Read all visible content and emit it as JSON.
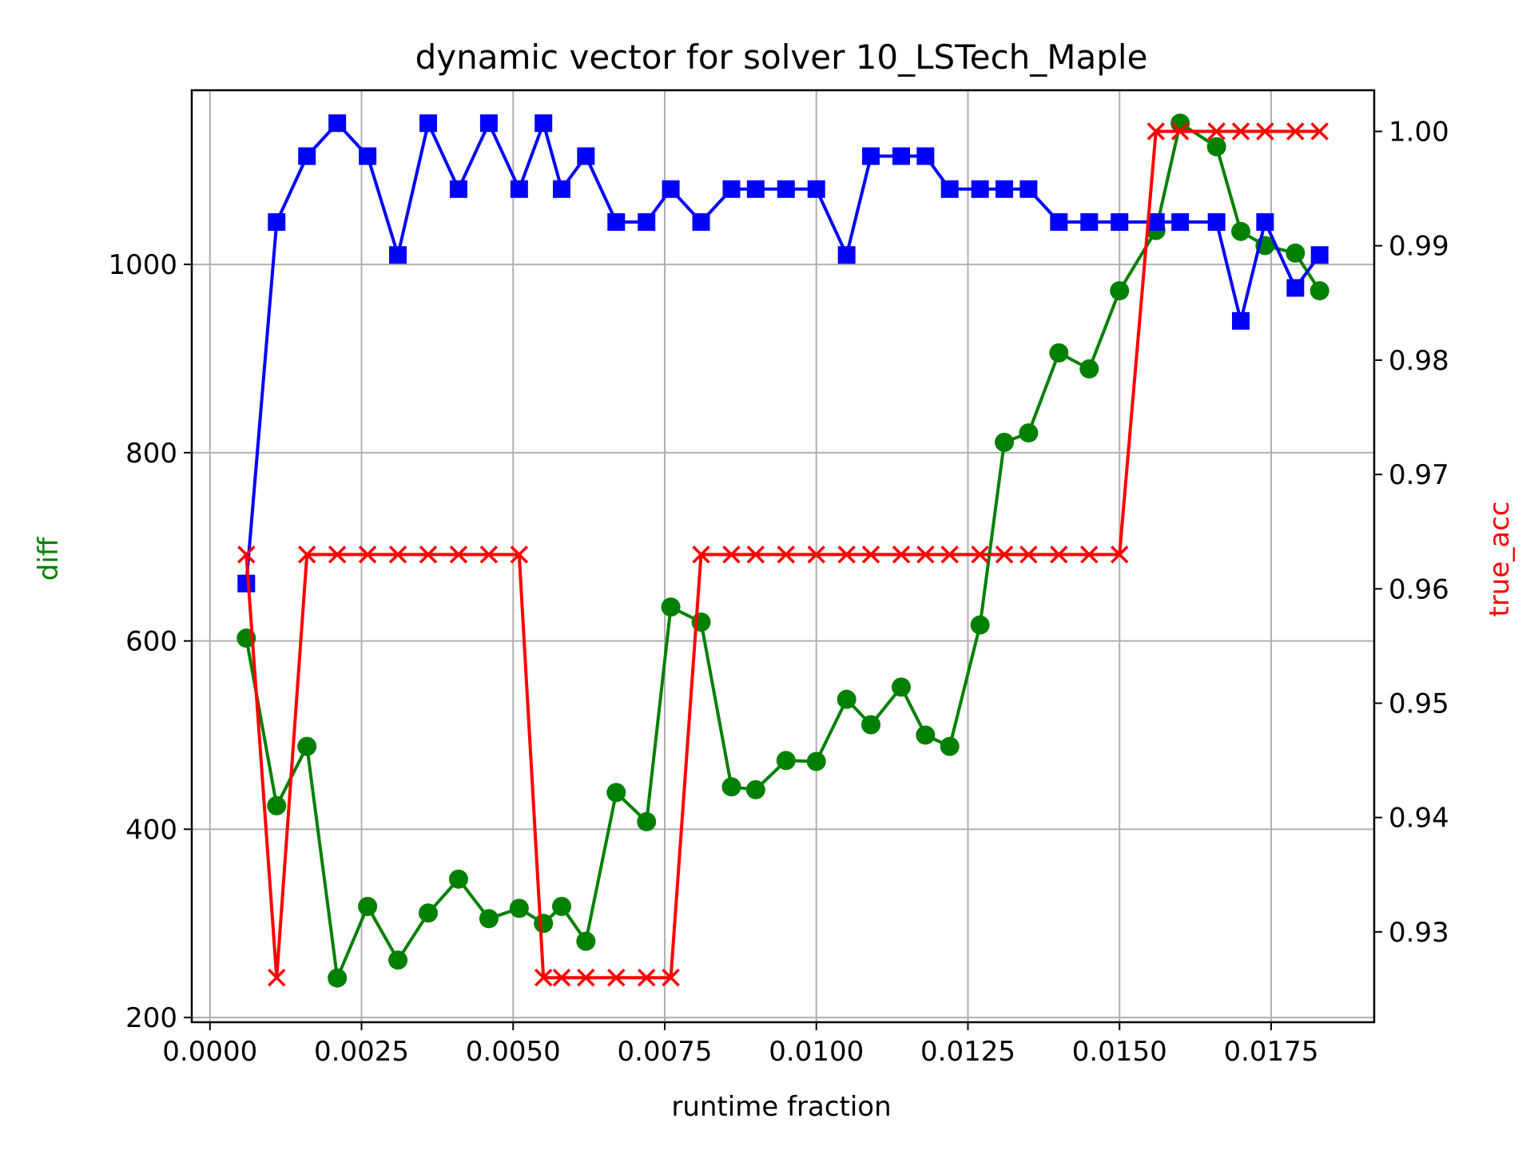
{
  "chart_data": {
    "type": "line",
    "title": "dynamic vector for solver 10_LSTech_Maple",
    "xlabel": "runtime fraction",
    "ylabel_left": "diff",
    "ylabel_right": "true_acc",
    "xlim": [
      -0.0003,
      0.0192
    ],
    "ylim_left": [
      195,
      1185
    ],
    "ylim_right": [
      0.9221,
      1.0036
    ],
    "x_ticks": [
      0.0,
      0.0025,
      0.005,
      0.0075,
      0.01,
      0.0125,
      0.015,
      0.0175
    ],
    "x_tick_labels": [
      "0.0000",
      "0.0025",
      "0.0050",
      "0.0075",
      "0.0100",
      "0.0125",
      "0.0150",
      "0.0175"
    ],
    "y_left_ticks": [
      200,
      400,
      600,
      800,
      1000
    ],
    "y_left_tick_labels": [
      "200",
      "400",
      "600",
      "800",
      "1000"
    ],
    "y_right_ticks": [
      0.93,
      0.94,
      0.95,
      0.96,
      0.97,
      0.98,
      0.99,
      1.0
    ],
    "y_right_tick_labels": [
      "0.93",
      "0.94",
      "0.95",
      "0.96",
      "0.97",
      "0.98",
      "0.99",
      "1.00"
    ],
    "grid": true,
    "x": [
      0.0006,
      0.0011,
      0.0016,
      0.0021,
      0.0026,
      0.0031,
      0.0036,
      0.0041,
      0.0046,
      0.0051,
      0.0055,
      0.0058,
      0.0062,
      0.0067,
      0.0072,
      0.0076,
      0.0081,
      0.0086,
      0.009,
      0.0095,
      0.01,
      0.0105,
      0.0109,
      0.0114,
      0.0118,
      0.0122,
      0.0127,
      0.0131,
      0.0135,
      0.014,
      0.0145,
      0.015,
      0.0156,
      0.016,
      0.0166,
      0.017,
      0.0174,
      0.0179,
      0.0183
    ],
    "series": [
      {
        "axis": "left",
        "color": "#008000",
        "marker": "circle",
        "values": [
          603,
          425,
          488,
          242,
          318,
          261,
          311,
          347,
          305,
          316,
          300,
          318,
          281,
          439,
          408,
          636,
          620,
          445,
          442,
          473,
          472,
          538,
          511,
          551,
          500,
          488,
          617,
          811,
          821,
          906,
          889,
          972,
          1036,
          1150,
          1125,
          1035,
          1020,
          1012,
          972
        ]
      },
      {
        "axis": "left",
        "color": "#0000ff",
        "marker": "square",
        "values": [
          661,
          1045,
          1115,
          1150,
          1115,
          1010,
          1150,
          1080,
          1150,
          1080,
          1150,
          1080,
          1115,
          1045,
          1045,
          1080,
          1045,
          1080,
          1080,
          1080,
          1080,
          1010,
          1115,
          1115,
          1115,
          1080,
          1080,
          1080,
          1080,
          1045,
          1045,
          1045,
          1045,
          1045,
          1045,
          940,
          1045,
          975,
          1010
        ]
      },
      {
        "axis": "right",
        "color": "#ff0000",
        "marker": "x",
        "values": [
          0.963,
          0.926,
          0.963,
          0.963,
          0.963,
          0.963,
          0.963,
          0.963,
          0.963,
          0.963,
          0.926,
          0.926,
          0.926,
          0.926,
          0.926,
          0.926,
          0.963,
          0.963,
          0.963,
          0.963,
          0.963,
          0.963,
          0.963,
          0.963,
          0.963,
          0.963,
          0.963,
          0.963,
          0.963,
          0.963,
          0.963,
          0.963,
          1.0,
          1.0,
          1.0,
          1.0,
          1.0,
          1.0,
          1.0
        ]
      }
    ],
    "colors": {
      "left_axis_label": "#008000",
      "right_axis_label": "#ff0000",
      "grid": "#b0b0b0"
    }
  }
}
